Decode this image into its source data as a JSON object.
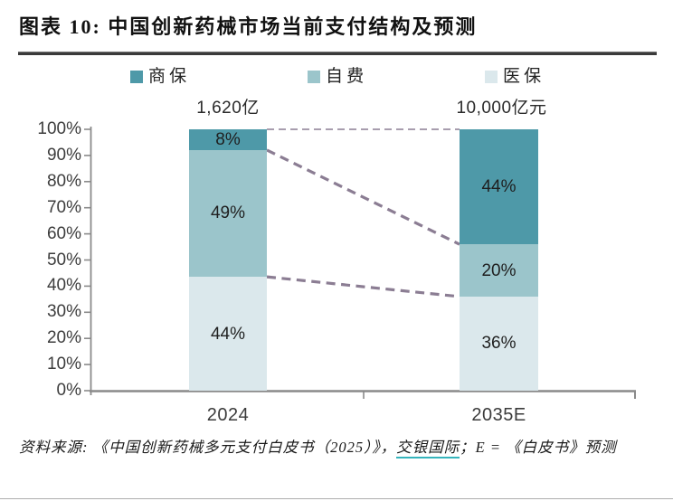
{
  "header": {
    "title": "图表 10: 中国创新药械市场当前支付结构及预测"
  },
  "chart_data": {
    "type": "bar",
    "subtype": "percent-stacked-column",
    "title": "中国创新药械市场当前支付结构及预测",
    "categories": [
      "2024",
      "2035E"
    ],
    "bar_totals": [
      "1,620亿",
      "10,000亿元"
    ],
    "series": [
      {
        "name": "商保",
        "color": "#4e99a8",
        "values": [
          8,
          44
        ]
      },
      {
        "name": "自费",
        "color": "#9bc5cb",
        "values": [
          49,
          20
        ]
      },
      {
        "name": "医保",
        "color": "#dbe8ec",
        "values": [
          44,
          36
        ]
      }
    ],
    "segment_labels": [
      [
        "8%",
        "44%"
      ],
      [
        "49%",
        "20%"
      ],
      [
        "44%",
        "36%"
      ]
    ],
    "y_axis": {
      "min": 0,
      "max": 100,
      "tick_labels": [
        "100%",
        "90%",
        "80%",
        "70%",
        "60%",
        "50%",
        "40%",
        "30%",
        "20%",
        "10%",
        "0%"
      ]
    },
    "legend_position": "top",
    "grid": false,
    "connector_color": "#8b7d93",
    "axis_color": "#8a8a8a"
  },
  "footer": {
    "source_prefix": "资料来源: 《中国创新药械多元支付白皮书（2025）》，",
    "source_link": "交银国际",
    "source_suffix": "；E = 《白皮书》预测",
    "link_underline_color": "#35b4bc"
  }
}
